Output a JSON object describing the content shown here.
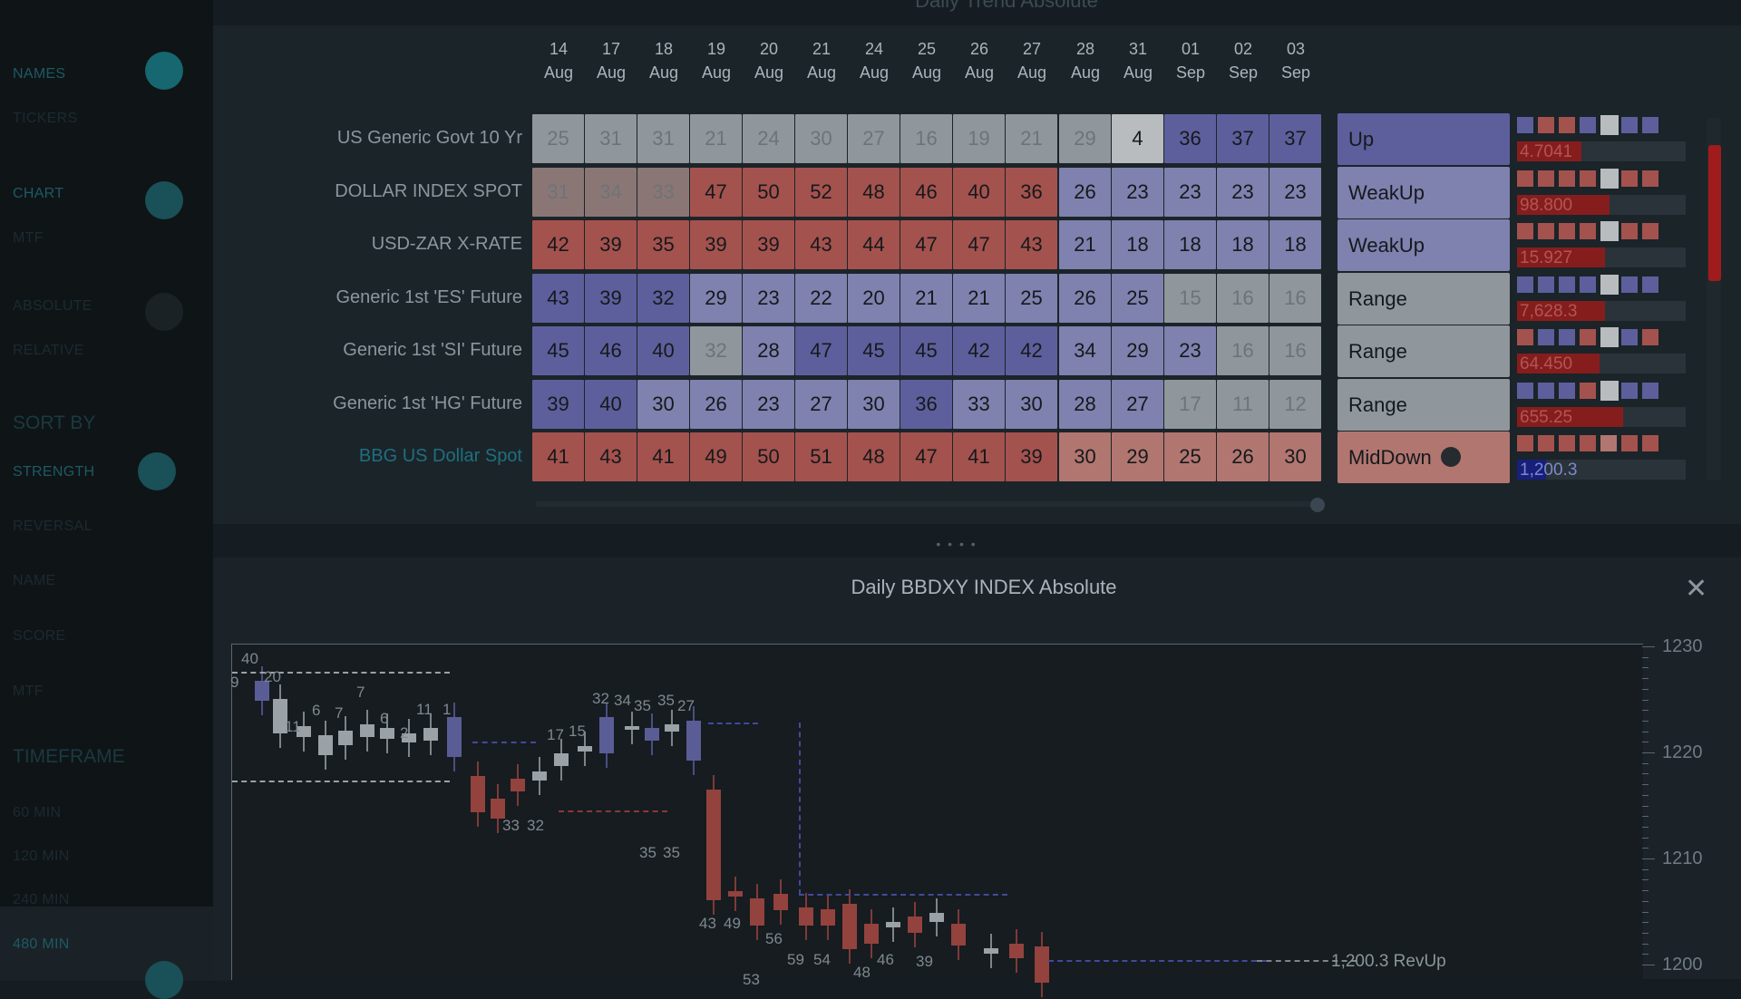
{
  "top_title": "Daily Trend Absolute",
  "sidebar": {
    "group1": [
      {
        "label": "NAMES",
        "active": true
      },
      {
        "label": "TICKERS",
        "active": false
      }
    ],
    "group2": [
      {
        "label": "CHART",
        "active": true
      },
      {
        "label": "MTF",
        "active": false
      }
    ],
    "group3": [
      {
        "label": "ABSOLUTE",
        "active": false
      },
      {
        "label": "RELATIVE",
        "active": false
      }
    ],
    "sort_heading": "SORT BY",
    "sort": [
      "STRENGTH",
      "REVERSAL",
      "NAME",
      "SCORE",
      "MTF"
    ],
    "timeframe_heading": "TIMEFRAME",
    "timeframe": [
      "60 MIN",
      "120 MIN",
      "240 MIN",
      "480 MIN"
    ]
  },
  "dates": [
    {
      "day": "14",
      "mon": "Aug"
    },
    {
      "day": "17",
      "mon": "Aug"
    },
    {
      "day": "18",
      "mon": "Aug"
    },
    {
      "day": "19",
      "mon": "Aug"
    },
    {
      "day": "20",
      "mon": "Aug"
    },
    {
      "day": "21",
      "mon": "Aug"
    },
    {
      "day": "24",
      "mon": "Aug"
    },
    {
      "day": "25",
      "mon": "Aug"
    },
    {
      "day": "26",
      "mon": "Aug"
    },
    {
      "day": "27",
      "mon": "Aug"
    },
    {
      "day": "28",
      "mon": "Aug"
    },
    {
      "day": "31",
      "mon": "Aug"
    },
    {
      "day": "01",
      "mon": "Sep"
    },
    {
      "day": "02",
      "mon": "Sep"
    },
    {
      "day": "03",
      "mon": "Sep"
    }
  ],
  "rows": [
    {
      "name": "US Generic Govt 10 Yr",
      "link": false,
      "values": [
        "25",
        "31",
        "31",
        "21",
        "24",
        "30",
        "27",
        "16",
        "19",
        "21",
        "29",
        "4",
        "36",
        "37",
        "37"
      ],
      "tones": [
        "g",
        "g",
        "g",
        "g",
        "g",
        "g",
        "g",
        "g",
        "g",
        "g",
        "g",
        "w",
        "b",
        "b",
        "b"
      ],
      "status": "Up",
      "status_tone": "b",
      "dot": false,
      "squares": [
        "b",
        "r",
        "r",
        "b",
        "w",
        "b",
        "b"
      ],
      "value": "4.7041",
      "bar_fraction": 0.38,
      "bar_color": "red"
    },
    {
      "name": "DOLLAR INDEX SPOT",
      "link": false,
      "values": [
        "31",
        "34",
        "33",
        "47",
        "50",
        "52",
        "48",
        "46",
        "40",
        "36",
        "26",
        "23",
        "23",
        "23",
        "23"
      ],
      "tones": [
        "rg",
        "rg",
        "rg",
        "r",
        "r",
        "r",
        "r",
        "r",
        "r",
        "r",
        "lb",
        "lb",
        "lb",
        "lb",
        "lb"
      ],
      "status": "WeakUp",
      "status_tone": "lb",
      "dot": false,
      "squares": [
        "r",
        "r",
        "r",
        "r",
        "w",
        "r",
        "r"
      ],
      "value": "98.800",
      "bar_fraction": 0.55,
      "bar_color": "red"
    },
    {
      "name": "USD-ZAR X-RATE",
      "link": false,
      "values": [
        "42",
        "39",
        "35",
        "39",
        "39",
        "43",
        "44",
        "47",
        "47",
        "43",
        "21",
        "18",
        "18",
        "18",
        "18"
      ],
      "tones": [
        "r",
        "r",
        "r",
        "r",
        "r",
        "r",
        "r",
        "r",
        "r",
        "r",
        "lb",
        "lb",
        "lb",
        "lb",
        "lb"
      ],
      "status": "WeakUp",
      "status_tone": "lb",
      "dot": false,
      "squares": [
        "r",
        "r",
        "r",
        "r",
        "w",
        "r",
        "r"
      ],
      "value": "15.927",
      "bar_fraction": 0.52,
      "bar_color": "red"
    },
    {
      "name": "Generic 1st 'ES' Future",
      "link": false,
      "values": [
        "43",
        "39",
        "32",
        "29",
        "23",
        "22",
        "20",
        "21",
        "21",
        "25",
        "26",
        "25",
        "15",
        "16",
        "16"
      ],
      "tones": [
        "b",
        "b",
        "b",
        "lb",
        "lb",
        "lb",
        "lb",
        "lb",
        "lb",
        "lb",
        "lb",
        "lb",
        "g",
        "g",
        "g"
      ],
      "status": "Range",
      "status_tone": "g",
      "dot": false,
      "squares": [
        "b",
        "b",
        "b",
        "b",
        "w",
        "b",
        "b"
      ],
      "value": "7,628.3",
      "bar_fraction": 0.52,
      "bar_color": "red"
    },
    {
      "name": "Generic 1st 'SI' Future",
      "link": false,
      "values": [
        "45",
        "46",
        "40",
        "32",
        "28",
        "47",
        "45",
        "45",
        "42",
        "42",
        "34",
        "29",
        "23",
        "16",
        "16"
      ],
      "tones": [
        "b",
        "b",
        "b",
        "g",
        "lb",
        "b",
        "b",
        "b",
        "b",
        "b",
        "lb",
        "lb",
        "lb",
        "g",
        "g"
      ],
      "status": "Range",
      "status_tone": "g",
      "dot": false,
      "squares": [
        "r",
        "b",
        "b",
        "r",
        "w",
        "b",
        "r"
      ],
      "value": "64.450",
      "bar_fraction": 0.49,
      "bar_color": "red"
    },
    {
      "name": "Generic 1st 'HG' Future",
      "link": false,
      "values": [
        "39",
        "40",
        "30",
        "26",
        "23",
        "27",
        "30",
        "36",
        "33",
        "30",
        "28",
        "27",
        "17",
        "11",
        "12"
      ],
      "tones": [
        "b",
        "b",
        "lb",
        "lb",
        "lb",
        "lb",
        "lb",
        "b",
        "lb",
        "lb",
        "lb",
        "lb",
        "g",
        "g",
        "g"
      ],
      "status": "Range",
      "status_tone": "g",
      "dot": false,
      "squares": [
        "b",
        "b",
        "b",
        "r",
        "w",
        "b",
        "b"
      ],
      "value": "655.25",
      "bar_fraction": 0.63,
      "bar_color": "red"
    },
    {
      "name": "BBG US Dollar Spot",
      "link": true,
      "values": [
        "41",
        "43",
        "41",
        "49",
        "50",
        "51",
        "48",
        "47",
        "41",
        "39",
        "30",
        "29",
        "25",
        "26",
        "30"
      ],
      "tones": [
        "r",
        "r",
        "r",
        "r",
        "r",
        "r",
        "r",
        "r",
        "r",
        "r",
        "lr",
        "lr",
        "lr",
        "lr",
        "lr"
      ],
      "status": "MidDown",
      "status_tone": "lr",
      "dot": true,
      "squares": [
        "r",
        "r",
        "r",
        "r",
        "lr",
        "r",
        "r"
      ],
      "value": "1,200.3",
      "bar_fraction": 0.17,
      "bar_color": "blue"
    }
  ],
  "chart": {
    "title": "Daily BBDXY INDEX Absolute",
    "close_label": "✕",
    "y_ticks": [
      "1230",
      "1220",
      "1210",
      "1200"
    ],
    "annotation": "1,200.3 RevUp",
    "candle_labels": [
      "40",
      "9",
      "20",
      "11",
      "6",
      "7",
      "7",
      "6",
      "2",
      "11",
      "1",
      "17",
      "15",
      "32",
      "34",
      "35",
      "35",
      "27",
      "35",
      "35",
      "33",
      "32",
      "43",
      "49",
      "56",
      "59",
      "54",
      "46",
      "39",
      "48",
      "53"
    ]
  },
  "colors": {
    "g": "#8f979d",
    "w": "#b8bcbf",
    "b": "#5d5f9c",
    "lb": "#7f82ae",
    "r": "#a4524e",
    "rg": "#8a7775",
    "lr": "#b27670"
  }
}
